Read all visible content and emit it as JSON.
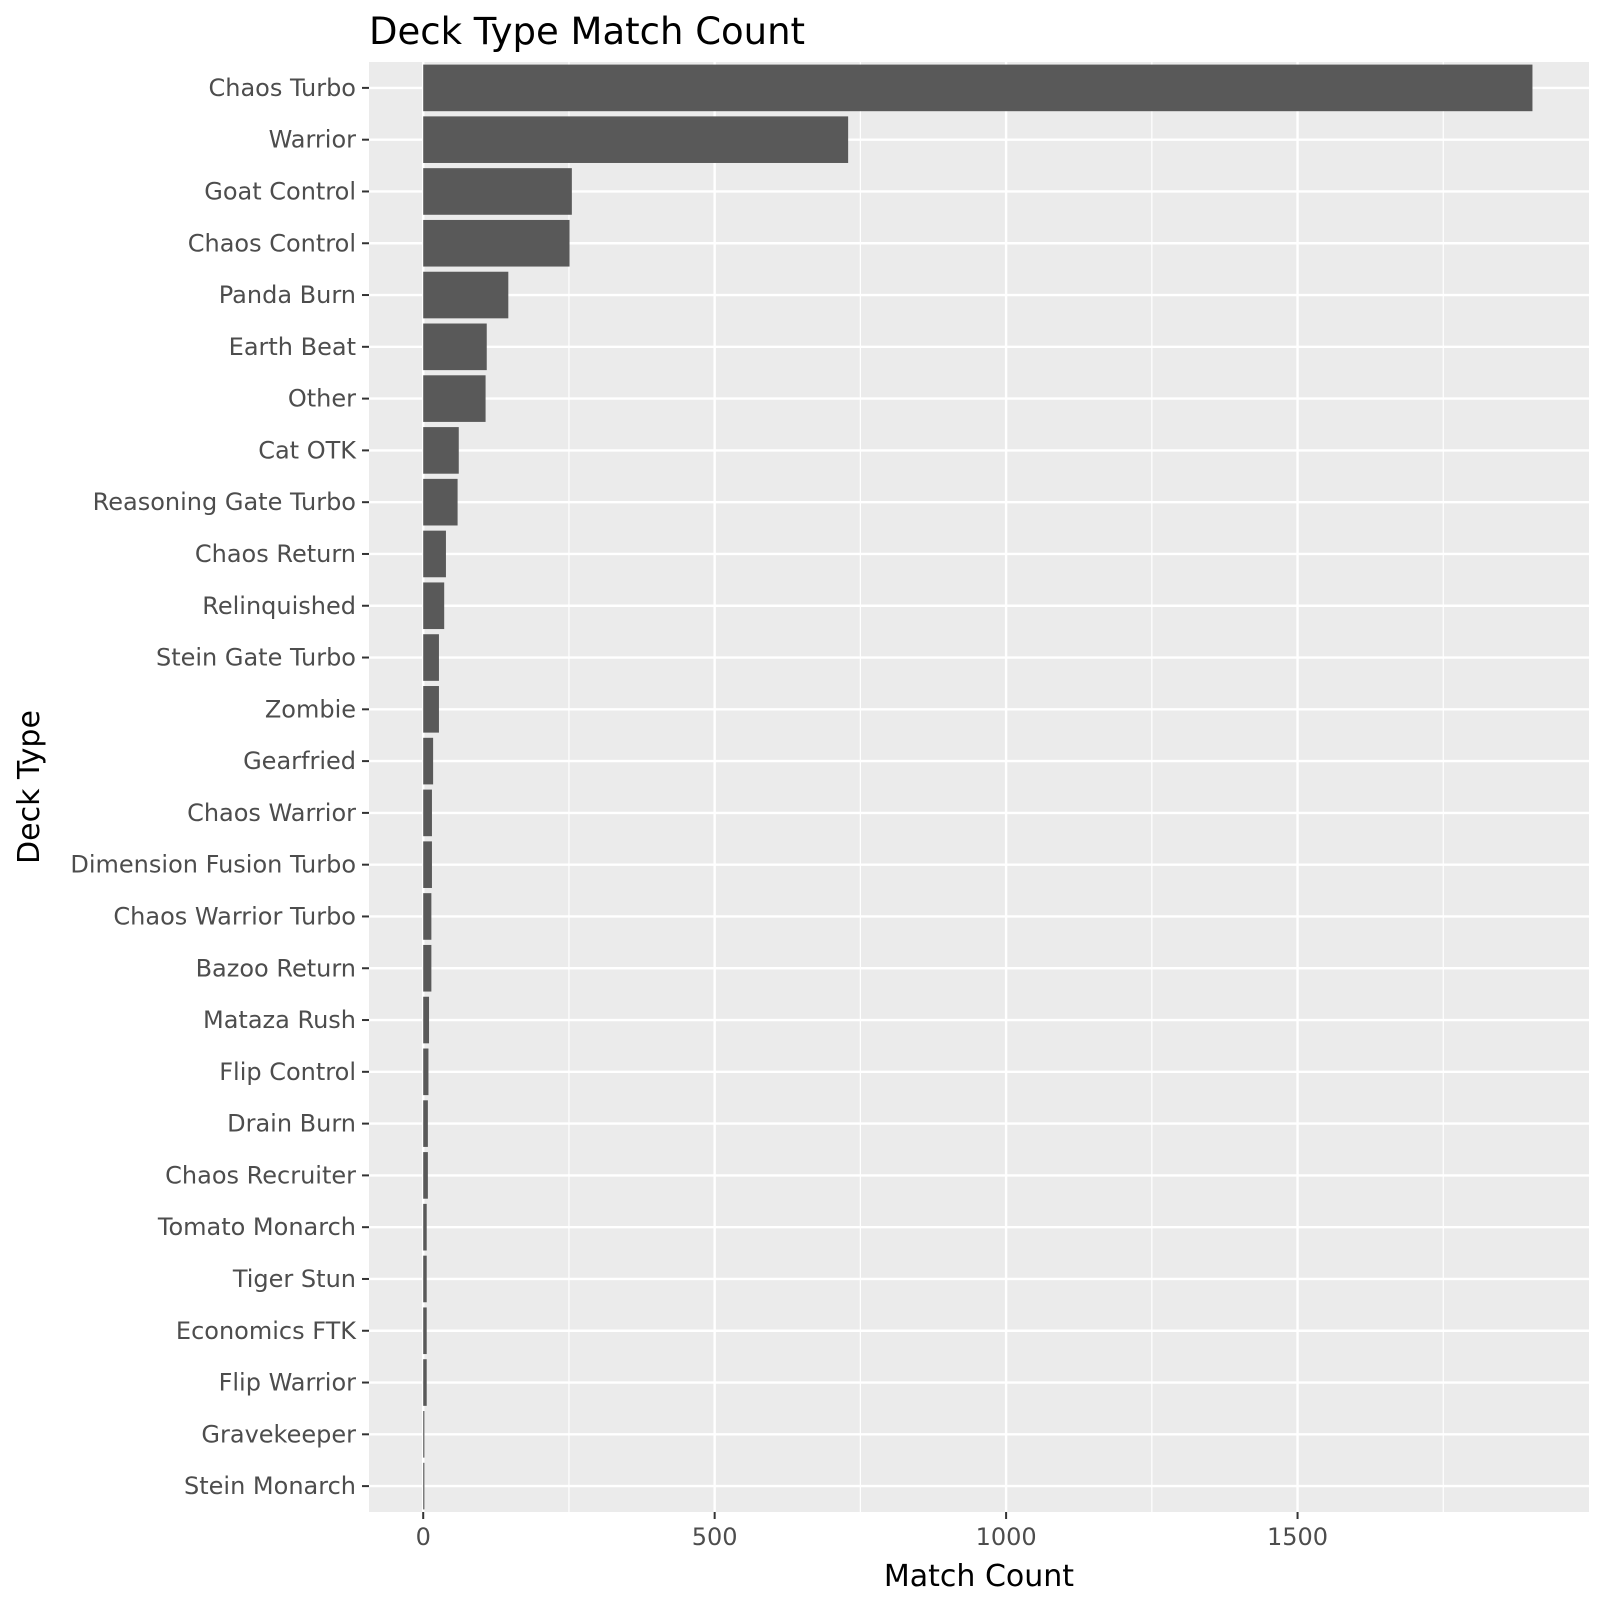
{
  "chart_data": {
    "type": "bar",
    "orientation": "horizontal",
    "title": "Deck Type Match Count",
    "xlabel": "Match Count",
    "ylabel": "Deck Type",
    "xlim": [
      -93,
      2000
    ],
    "x_ticks": [
      0,
      500,
      1000,
      1500
    ],
    "x_tick_labels": [
      "0",
      "500",
      "1000",
      "1500"
    ],
    "grid": true,
    "legend": "none",
    "colors": {
      "panel": "#ebebeb",
      "bar": "#595959",
      "grid": "#ffffff",
      "tick": "#4d4d4d"
    },
    "categories": [
      "Chaos Turbo",
      "Warrior",
      "Goat Control",
      "Chaos Control",
      "Panda Burn",
      "Earth Beat",
      "Other",
      "Cat OTK",
      "Reasoning Gate Turbo",
      "Chaos Return",
      "Relinquished",
      "Stein Gate Turbo",
      "Zombie",
      "Gearfried",
      "Chaos Warrior",
      "Dimension Fusion Turbo",
      "Chaos Warrior Turbo",
      "Bazoo Return",
      "Mataza Rush",
      "Flip Control",
      "Drain Burn",
      "Chaos Recruiter",
      "Tomato Monarch",
      "Tiger Stun",
      "Economics FTK",
      "Flip Warrior",
      "Gravekeeper",
      "Stein Monarch"
    ],
    "values": [
      1903,
      729,
      255,
      251,
      146,
      109,
      107,
      61,
      59,
      39,
      36,
      27,
      27,
      17,
      15,
      15,
      14,
      14,
      10,
      9,
      8,
      8,
      6,
      6,
      6,
      6,
      2,
      2
    ]
  }
}
